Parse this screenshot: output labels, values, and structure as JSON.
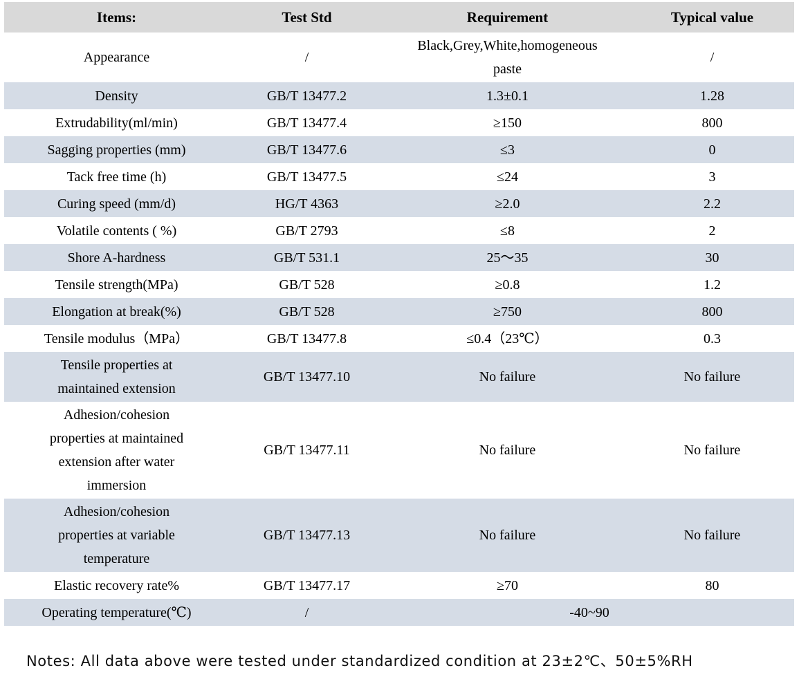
{
  "table": {
    "headers": [
      "Items:",
      "Test Std",
      "Requirement",
      "Typical value"
    ],
    "rows": [
      {
        "item": "Appearance",
        "std": "/",
        "req": "Black,Grey,White,homogeneous\npaste",
        "typ": "/",
        "shade": false
      },
      {
        "item": "Density",
        "std": "GB/T 13477.2",
        "req": "1.3±0.1",
        "typ": "1.28",
        "shade": true
      },
      {
        "item": "Extrudability(ml/min)",
        "std": "GB/T 13477.4",
        "req": "≥150",
        "typ": "800",
        "shade": false
      },
      {
        "item": "Sagging properties (mm)",
        "std": "GB/T 13477.6",
        "req": "≤3",
        "typ": "0",
        "shade": true
      },
      {
        "item": "Tack free time (h)",
        "std": "GB/T 13477.5",
        "req": "≤24",
        "typ": "3",
        "shade": false
      },
      {
        "item": "Curing speed (mm/d)",
        "std": "HG/T 4363",
        "req": "≥2.0",
        "typ": "2.2",
        "shade": true
      },
      {
        "item": "Volatile contents ( %)",
        "std": "GB/T 2793",
        "req": "≤8",
        "typ": "2",
        "shade": false
      },
      {
        "item": "Shore A-hardness",
        "std": "GB/T 531.1",
        "req": "25～35",
        "typ": "30",
        "shade": true
      },
      {
        "item": "Tensile strength(MPa)",
        "std": "GB/T 528",
        "req": "≥0.8",
        "typ": "1.2",
        "shade": false
      },
      {
        "item": "Elongation at break(%)",
        "std": "GB/T 528",
        "req": "≥750",
        "typ": "800",
        "shade": true
      },
      {
        "item": "Tensile modulus（MPa）",
        "std": "GB/T 13477.8",
        "req": "≤0.4（23℃）",
        "typ": "0.3",
        "shade": false
      },
      {
        "item": "Tensile properties at\nmaintained extension",
        "std": "GB/T 13477.10",
        "req": "No failure",
        "typ": "No failure",
        "shade": true
      },
      {
        "item": "Adhesion/cohesion\nproperties at maintained\nextension after water\nimmersion",
        "std": "GB/T 13477.11",
        "req": "No failure",
        "typ": "No failure",
        "shade": false
      },
      {
        "item": "Adhesion/cohesion\nproperties at variable\ntemperature",
        "std": "GB/T 13477.13",
        "req": "No failure",
        "typ": "No failure",
        "shade": true
      },
      {
        "item": "Elastic recovery rate%",
        "std": "GB/T 13477.17",
        "req": "≥70",
        "typ": "80",
        "shade": false
      },
      {
        "item": "Operating temperature(℃)",
        "std": "/",
        "req_span": "-40~90",
        "shade": true
      }
    ]
  },
  "notes": "Notes: All data above were tested under standardized condition at 23±2℃、50±5%RH",
  "colors": {
    "header_bg": "#d9d9d9",
    "shade_bg": "#d5dce6",
    "row_bg": "#ffffff",
    "text": "#000000"
  }
}
